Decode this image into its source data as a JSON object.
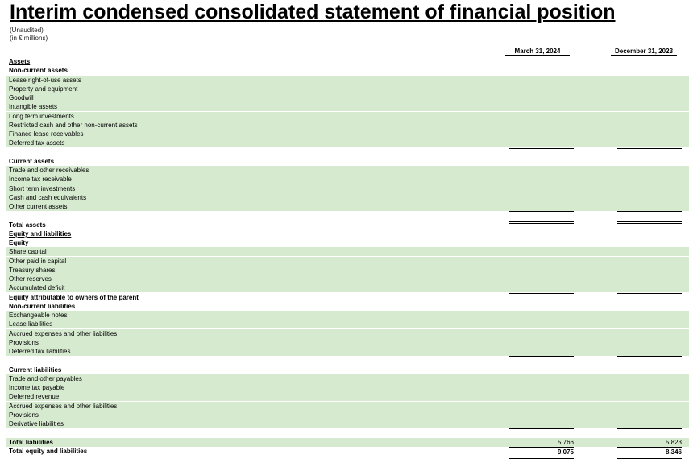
{
  "title": "Interim condensed consolidated statement of financial position",
  "subtitle1": "(Unaudited)",
  "subtitle2": "(in € millions)",
  "columns": [
    "March 31, 2024",
    "December 31, 2023"
  ],
  "rows": [
    {
      "label": "Assets",
      "v1": "",
      "v2": "",
      "style": "hdr ul"
    },
    {
      "label": "Non-current assets",
      "v1": "",
      "v2": "",
      "style": "hdr"
    },
    {
      "label": "Lease right-of-use assets",
      "v1": "",
      "v2": "",
      "style": "shade"
    },
    {
      "label": "Property and equipment",
      "v1": "",
      "v2": "",
      "style": "shade"
    },
    {
      "label": "Goodwill",
      "v1": "",
      "v2": "",
      "style": "shade"
    },
    {
      "label": "Intangible assets",
      "v1": "",
      "v2": "",
      "style": "shade"
    },
    {
      "label": "Long term investments",
      "v1": "",
      "v2": "",
      "style": "shade"
    },
    {
      "label": "Restricted cash and other non-current assets",
      "v1": "",
      "v2": "",
      "style": "shade"
    },
    {
      "label": "Finance lease receivables",
      "v1": "",
      "v2": "",
      "style": "shade"
    },
    {
      "label": "Deferred tax assets",
      "v1": "",
      "v2": "",
      "style": "shade"
    },
    {
      "label": "",
      "v1": "",
      "v2": "",
      "style": "total"
    },
    {
      "label": "Current assets",
      "v1": "",
      "v2": "",
      "style": "hdr"
    },
    {
      "label": "Trade and other receivables",
      "v1": "",
      "v2": "",
      "style": "shade"
    },
    {
      "label": "Income tax receivable",
      "v1": "",
      "v2": "",
      "style": "shade"
    },
    {
      "label": "Short term investments",
      "v1": "",
      "v2": "",
      "style": "shade"
    },
    {
      "label": "Cash and cash equivalents",
      "v1": "",
      "v2": "",
      "style": "shade"
    },
    {
      "label": "Other current assets",
      "v1": "",
      "v2": "",
      "style": "shade"
    },
    {
      "label": "",
      "v1": "",
      "v2": "",
      "style": "total"
    },
    {
      "label": "Total assets",
      "v1": "",
      "v2": "",
      "style": "dtotal bold"
    },
    {
      "label": "Equity and liabilities",
      "v1": "",
      "v2": "",
      "style": "hdr ul"
    },
    {
      "label": "Equity",
      "v1": "",
      "v2": "",
      "style": "hdr"
    },
    {
      "label": "Share capital",
      "v1": "",
      "v2": "",
      "style": "shade"
    },
    {
      "label": "Other paid in capital",
      "v1": "",
      "v2": "",
      "style": "shade"
    },
    {
      "label": "Treasury shares",
      "v1": "",
      "v2": "",
      "style": "shade"
    },
    {
      "label": "Other reserves",
      "v1": "",
      "v2": "",
      "style": "shade"
    },
    {
      "label": "Accumulated deficit",
      "v1": "",
      "v2": "",
      "style": "shade"
    },
    {
      "label": "Equity attributable to owners of the parent",
      "v1": "",
      "v2": "",
      "style": "total bold"
    },
    {
      "label": "Non-current liabilities",
      "v1": "",
      "v2": "",
      "style": "hdr"
    },
    {
      "label": "Exchangeable notes",
      "v1": "",
      "v2": "",
      "style": "shade"
    },
    {
      "label": "Lease liabilities",
      "v1": "",
      "v2": "",
      "style": "shade"
    },
    {
      "label": "Accrued expenses and other liabilities",
      "v1": "",
      "v2": "",
      "style": "shade"
    },
    {
      "label": "Provisions",
      "v1": "",
      "v2": "",
      "style": "shade"
    },
    {
      "label": "Deferred tax liabilities",
      "v1": "",
      "v2": "",
      "style": "shade"
    },
    {
      "label": "",
      "v1": "",
      "v2": "",
      "style": "total"
    },
    {
      "label": "Current liabilities",
      "v1": "",
      "v2": "",
      "style": "hdr"
    },
    {
      "label": "Trade and other payables",
      "v1": "",
      "v2": "",
      "style": "shade"
    },
    {
      "label": "Income tax payable",
      "v1": "",
      "v2": "",
      "style": "shade"
    },
    {
      "label": "Deferred revenue",
      "v1": "",
      "v2": "",
      "style": "shade"
    },
    {
      "label": "Accrued expenses and other liabilities",
      "v1": "",
      "v2": "",
      "style": "shade"
    },
    {
      "label": "Provisions",
      "v1": "",
      "v2": "",
      "style": "shade"
    },
    {
      "label": "Derivative liabilities",
      "v1": "",
      "v2": "",
      "style": "shade"
    },
    {
      "label": "",
      "v1": "",
      "v2": "",
      "style": "total"
    },
    {
      "label": "Total liabilities",
      "v1": "5,766",
      "v2": "5,823",
      "style": "shade bold"
    },
    {
      "label": "Total equity and liabilities",
      "v1": "9,075",
      "v2": "8,346",
      "style": "dtotal bold"
    }
  ]
}
